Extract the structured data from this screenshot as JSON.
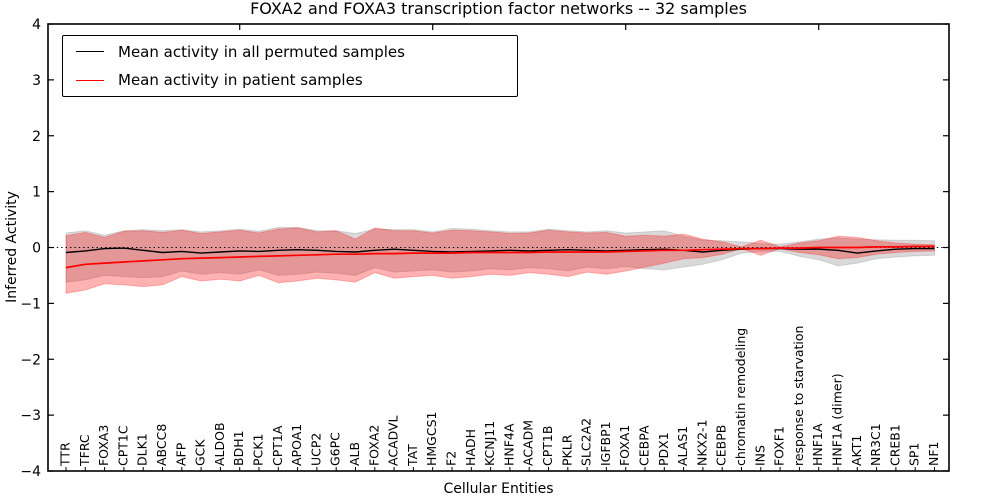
{
  "legend": {
    "entries": [
      {
        "label": "Mean activity in all permuted samples",
        "color": "#000000"
      },
      {
        "label": "Mean activity in patient samples",
        "color": "#ff0000"
      }
    ]
  },
  "chart_data": {
    "type": "line",
    "title": "FOXA2 and FOXA3 transcription factor networks -- 32 samples",
    "xlabel": "Cellular Entities",
    "ylabel": "Inferred Activity",
    "ylim": [
      -4,
      4
    ],
    "yticks": [
      4,
      3,
      2,
      1,
      0,
      -1,
      -2,
      -3,
      -4
    ],
    "grid": false,
    "zero_line": "dotted",
    "legend_position": "upper left",
    "top_tick_indices": [
      9,
      19,
      29,
      39
    ],
    "categories": [
      "TTR",
      "TFRC",
      "FOXA3",
      "CPT1C",
      "DLK1",
      "ABCC8",
      "AFP",
      "GCK",
      "ALDOB",
      "BDH1",
      "PCK1",
      "CPT1A",
      "APOA1",
      "UCP2",
      "G6PC",
      "ALB",
      "FOXA2",
      "ACADVL",
      "TAT",
      "HMGCS1",
      "F2",
      "HADH",
      "KCNJ11",
      "HNF4A",
      "ACADM",
      "CPT1B",
      "PKLR",
      "SLC2A2",
      "IGFBP1",
      "FOXA1",
      "CEBPA",
      "PDX1",
      "ALAS1",
      "NKX2-1",
      "CEBPB",
      "chromatin remodeling",
      "INS",
      "FOXF1",
      "response to starvation",
      "HNF1A",
      "HNF1A (dimer)",
      "AKT1",
      "NR3C1",
      "CREB1",
      "SP1",
      "NF1"
    ],
    "series": [
      {
        "name": "Mean activity in all permuted samples",
        "color": "#000000",
        "values": [
          -0.09,
          -0.06,
          -0.02,
          -0.01,
          -0.05,
          -0.09,
          -0.07,
          -0.1,
          -0.08,
          -0.06,
          -0.07,
          -0.05,
          -0.04,
          -0.05,
          -0.07,
          -0.08,
          -0.05,
          -0.03,
          -0.05,
          -0.07,
          -0.08,
          -0.07,
          -0.06,
          -0.05,
          -0.06,
          -0.05,
          -0.04,
          -0.05,
          -0.06,
          -0.05,
          -0.04,
          -0.03,
          -0.05,
          -0.08,
          -0.05,
          -0.03,
          -0.02,
          -0.02,
          -0.03,
          -0.03,
          -0.05,
          -0.1,
          -0.06,
          -0.03,
          -0.02,
          -0.02
        ]
      },
      {
        "name": "Mean activity in patient samples",
        "color": "#ff0000",
        "values": [
          -0.36,
          -0.3,
          -0.28,
          -0.26,
          -0.24,
          -0.22,
          -0.2,
          -0.19,
          -0.18,
          -0.17,
          -0.16,
          -0.15,
          -0.14,
          -0.13,
          -0.12,
          -0.12,
          -0.11,
          -0.11,
          -0.1,
          -0.1,
          -0.1,
          -0.09,
          -0.09,
          -0.09,
          -0.09,
          -0.08,
          -0.08,
          -0.08,
          -0.08,
          -0.07,
          -0.06,
          -0.05,
          -0.05,
          -0.04,
          -0.03,
          -0.02,
          -0.02,
          -0.01,
          -0.01,
          0.0,
          0.0,
          0.0,
          0.01,
          0.01,
          0.02,
          0.02
        ]
      }
    ],
    "bands": [
      {
        "name": "permuted samples range",
        "fill": "rgba(0,0,0,0.15)",
        "edge": "rgba(0,0,0,0.12)",
        "upper": [
          0.26,
          0.3,
          0.22,
          0.3,
          0.32,
          0.3,
          0.32,
          0.28,
          0.3,
          0.33,
          0.29,
          0.36,
          0.36,
          0.3,
          0.3,
          0.25,
          0.33,
          0.32,
          0.32,
          0.28,
          0.34,
          0.33,
          0.3,
          0.28,
          0.28,
          0.33,
          0.3,
          0.28,
          0.3,
          0.26,
          0.28,
          0.3,
          0.2,
          0.13,
          0.12,
          0.1,
          0.07,
          0.06,
          0.1,
          0.15,
          0.17,
          0.15,
          0.14,
          0.13,
          0.13,
          0.12
        ],
        "lower": [
          -0.62,
          -0.58,
          -0.5,
          -0.52,
          -0.54,
          -0.52,
          -0.42,
          -0.48,
          -0.45,
          -0.48,
          -0.4,
          -0.5,
          -0.48,
          -0.44,
          -0.46,
          -0.5,
          -0.36,
          -0.44,
          -0.42,
          -0.4,
          -0.44,
          -0.42,
          -0.38,
          -0.4,
          -0.36,
          -0.38,
          -0.42,
          -0.35,
          -0.38,
          -0.34,
          -0.38,
          -0.4,
          -0.35,
          -0.3,
          -0.22,
          -0.1,
          -0.07,
          -0.07,
          -0.16,
          -0.22,
          -0.33,
          -0.28,
          -0.2,
          -0.17,
          -0.15,
          -0.14
        ]
      },
      {
        "name": "patient samples range",
        "fill": "rgba(255,0,0,0.30)",
        "edge": "rgba(255,0,0,0.25)",
        "upper": [
          0.21,
          0.27,
          0.18,
          0.29,
          0.3,
          0.27,
          0.31,
          0.25,
          0.28,
          0.31,
          0.26,
          0.33,
          0.35,
          0.28,
          0.3,
          0.15,
          0.35,
          0.3,
          0.3,
          0.26,
          0.31,
          0.3,
          0.28,
          0.25,
          0.26,
          0.31,
          0.28,
          0.26,
          0.27,
          0.2,
          0.22,
          0.2,
          0.24,
          0.15,
          0.1,
          0.01,
          0.13,
          0.01,
          0.08,
          0.12,
          0.2,
          0.18,
          0.12,
          0.08,
          0.06,
          0.05
        ],
        "lower": [
          -0.82,
          -0.76,
          -0.65,
          -0.67,
          -0.7,
          -0.67,
          -0.52,
          -0.6,
          -0.57,
          -0.6,
          -0.5,
          -0.63,
          -0.6,
          -0.55,
          -0.58,
          -0.62,
          -0.45,
          -0.55,
          -0.52,
          -0.5,
          -0.55,
          -0.52,
          -0.48,
          -0.5,
          -0.45,
          -0.48,
          -0.52,
          -0.44,
          -0.48,
          -0.42,
          -0.35,
          -0.28,
          -0.2,
          -0.18,
          -0.12,
          -0.02,
          -0.14,
          -0.02,
          -0.09,
          -0.13,
          -0.2,
          -0.18,
          -0.12,
          -0.09,
          -0.07,
          -0.06
        ]
      }
    ]
  }
}
